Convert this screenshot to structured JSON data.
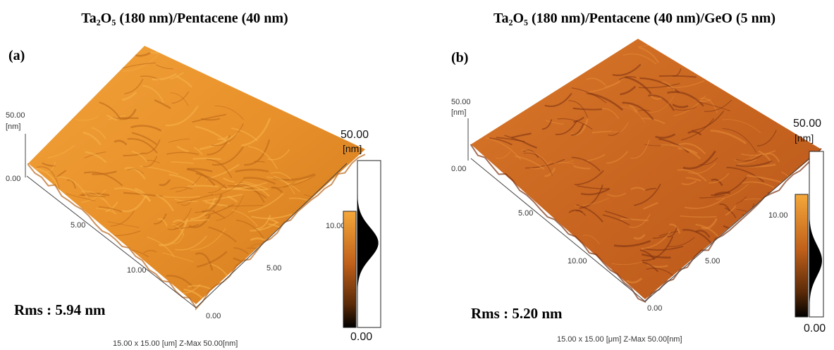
{
  "panels": [
    {
      "title": "Ta₂O₅ (180 nm)/Pentacene (40 nm)",
      "label": "(a)",
      "z_axis": {
        "max": "50.00",
        "unit": "[nm]",
        "min": "0.00"
      },
      "left_axis": [
        "5.00",
        "10.00"
      ],
      "origin": "0.00",
      "right_axis": [
        "5.00",
        "10.00"
      ],
      "colorbar": {
        "max": "50.00",
        "unit": "[nm]",
        "min": "0.00"
      },
      "rms": "Rms : 5.94 nm",
      "footer": "15.00 x 15.00 [um]  Z-Max 50.00[nm]"
    },
    {
      "title": "Ta₂O₅ (180 nm)/Pentacene (40 nm)/GeO (5 nm)",
      "label": "(b)",
      "z_axis": {
        "max": "50.00",
        "unit": "[nm]",
        "min": "0.00"
      },
      "left_axis": [
        "5.00",
        "10.00"
      ],
      "origin": "0.00",
      "right_axis": [
        "5.00",
        "10.00"
      ],
      "colorbar": {
        "max": "50.00",
        "unit": "[nm]",
        "min": "0.00"
      },
      "rms": "Rms : 5.20 nm",
      "footer": "15.00 x 15.00 [μm]  Z-Max 50.00[nm]"
    }
  ]
}
